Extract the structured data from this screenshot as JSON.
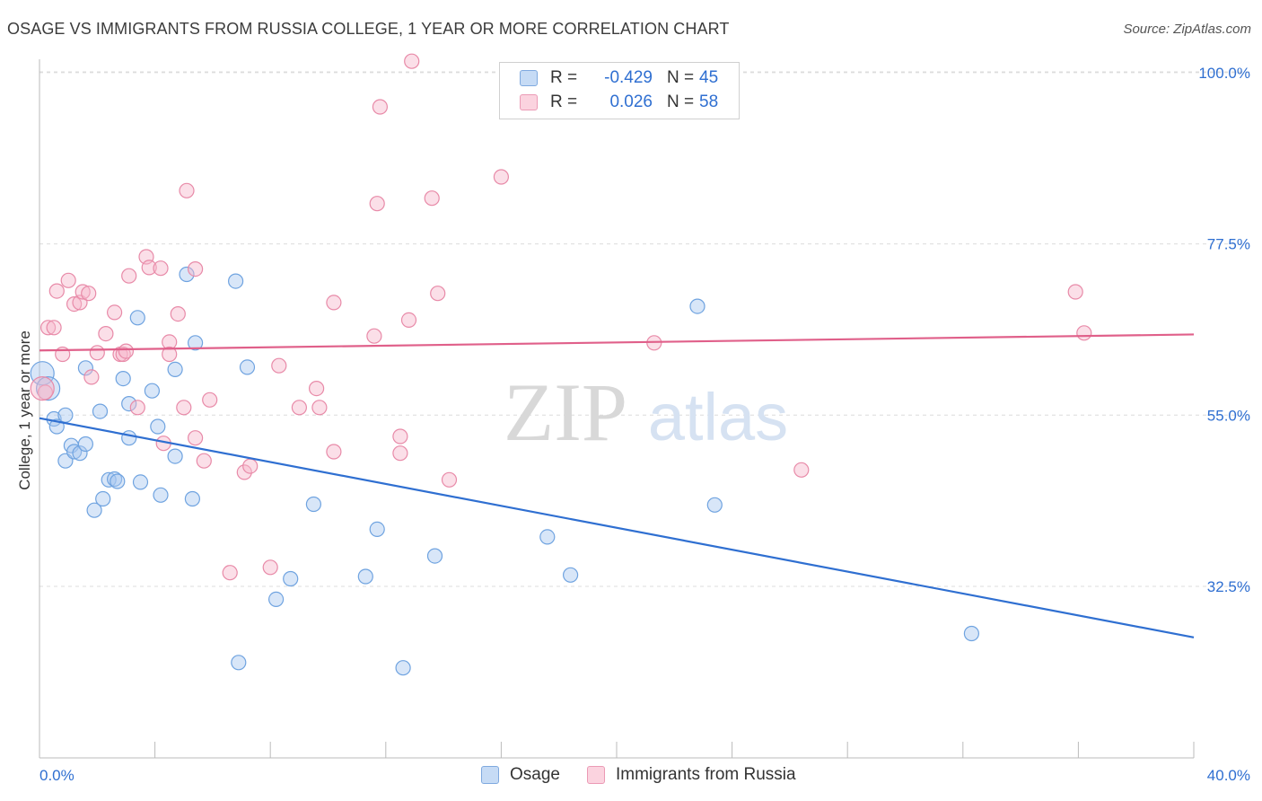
{
  "title": "OSAGE VS IMMIGRANTS FROM RUSSIA COLLEGE, 1 YEAR OR MORE CORRELATION CHART",
  "source": "Source: ZipAtlas.com",
  "watermark": {
    "zip": "ZIP",
    "atlas": "atlas"
  },
  "legend": {
    "rows": [
      {
        "r_label": "R =",
        "r_value": "-0.429",
        "n_label": "N =",
        "n_value": "45",
        "color": "#a8c8f0"
      },
      {
        "r_label": "R =",
        "r_value": "0.026",
        "n_label": "N =",
        "n_value": "58",
        "color": "#f7b8cb"
      }
    ]
  },
  "bottom_legend": [
    {
      "label": "Osage",
      "color": "#a8c8f0"
    },
    {
      "label": "Immigrants from Russia",
      "color": "#f7b8cb"
    }
  ],
  "chart_data": {
    "type": "scatter",
    "title": "OSAGE VS IMMIGRANTS FROM RUSSIA COLLEGE, 1 YEAR OR MORE CORRELATION CHART",
    "xlabel": "",
    "ylabel": "College, 1 year or more",
    "xlim": [
      0,
      40
    ],
    "ylim": [
      13,
      102
    ],
    "x_tick_labels": [
      "0.0%",
      "40.0%"
    ],
    "y_ticks": [
      32.5,
      55.0,
      77.5,
      100.0
    ],
    "y_tick_labels": [
      "32.5%",
      "55.0%",
      "77.5%",
      "100.0%"
    ],
    "grid": true,
    "legend_position": "top-center",
    "series": [
      {
        "name": "Osage",
        "color": "#6fa3e0",
        "fill": "rgba(168,200,240,0.45)",
        "line_color": "#2f6fd1",
        "trend": {
          "x": [
            0,
            40
          ],
          "y": [
            54.6,
            25.8
          ]
        },
        "points": [
          [
            0.1,
            60.5
          ],
          [
            0.3,
            58.5
          ],
          [
            0.5,
            54.5
          ],
          [
            0.6,
            53.5
          ],
          [
            0.9,
            55.0
          ],
          [
            0.9,
            49.0
          ],
          [
            1.1,
            51.0
          ],
          [
            1.2,
            50.2
          ],
          [
            1.4,
            50.0
          ],
          [
            1.6,
            51.2
          ],
          [
            1.6,
            61.2
          ],
          [
            1.9,
            42.5
          ],
          [
            2.1,
            55.5
          ],
          [
            2.2,
            44.0
          ],
          [
            2.4,
            46.5
          ],
          [
            2.6,
            46.6
          ],
          [
            2.7,
            46.3
          ],
          [
            2.9,
            59.8
          ],
          [
            3.1,
            52.0
          ],
          [
            3.1,
            56.5
          ],
          [
            3.4,
            67.8
          ],
          [
            3.5,
            46.2
          ],
          [
            3.9,
            58.2
          ],
          [
            4.1,
            53.5
          ],
          [
            4.2,
            44.5
          ],
          [
            4.7,
            49.6
          ],
          [
            4.7,
            61.0
          ],
          [
            5.1,
            73.5
          ],
          [
            5.3,
            44.0
          ],
          [
            5.4,
            64.5
          ],
          [
            6.8,
            72.6
          ],
          [
            6.9,
            22.5
          ],
          [
            7.2,
            61.3
          ],
          [
            8.2,
            30.8
          ],
          [
            8.7,
            33.5
          ],
          [
            9.5,
            43.3
          ],
          [
            11.3,
            33.8
          ],
          [
            11.7,
            40.0
          ],
          [
            12.6,
            21.8
          ],
          [
            13.7,
            36.5
          ],
          [
            17.6,
            39.0
          ],
          [
            18.4,
            34.0
          ],
          [
            22.8,
            69.3
          ],
          [
            23.4,
            43.2
          ],
          [
            32.3,
            26.3
          ]
        ]
      },
      {
        "name": "Immigrants from Russia",
        "color": "#e88aa8",
        "fill": "rgba(247,184,203,0.45)",
        "line_color": "#e0608a",
        "trend": {
          "x": [
            0,
            40
          ],
          "y": [
            63.5,
            65.6
          ]
        },
        "points": [
          [
            0.2,
            58.0
          ],
          [
            0.3,
            66.5
          ],
          [
            0.5,
            66.5
          ],
          [
            0.6,
            71.3
          ],
          [
            0.8,
            63.0
          ],
          [
            1.0,
            72.7
          ],
          [
            1.2,
            69.6
          ],
          [
            1.4,
            69.8
          ],
          [
            1.5,
            71.2
          ],
          [
            1.7,
            71.0
          ],
          [
            1.8,
            60.0
          ],
          [
            2.0,
            63.2
          ],
          [
            2.3,
            65.7
          ],
          [
            2.6,
            68.5
          ],
          [
            2.8,
            63.0
          ],
          [
            2.9,
            63.0
          ],
          [
            3.0,
            63.4
          ],
          [
            3.1,
            73.3
          ],
          [
            3.4,
            56.0
          ],
          [
            3.7,
            75.8
          ],
          [
            3.8,
            74.4
          ],
          [
            4.2,
            74.3
          ],
          [
            4.5,
            64.6
          ],
          [
            4.3,
            51.3
          ],
          [
            4.5,
            63.0
          ],
          [
            4.8,
            68.3
          ],
          [
            5.0,
            56.0
          ],
          [
            5.1,
            84.5
          ],
          [
            5.4,
            52.0
          ],
          [
            5.4,
            74.2
          ],
          [
            5.7,
            49.0
          ],
          [
            5.9,
            57.0
          ],
          [
            6.6,
            34.3
          ],
          [
            7.1,
            47.5
          ],
          [
            7.3,
            48.3
          ],
          [
            8.0,
            35.0
          ],
          [
            8.3,
            61.5
          ],
          [
            9.0,
            56.0
          ],
          [
            9.6,
            58.5
          ],
          [
            9.7,
            56.0
          ],
          [
            10.2,
            50.2
          ],
          [
            10.2,
            69.8
          ],
          [
            11.6,
            65.4
          ],
          [
            11.7,
            82.8
          ],
          [
            11.8,
            95.5
          ],
          [
            12.5,
            52.2
          ],
          [
            12.5,
            50.0
          ],
          [
            12.8,
            67.5
          ],
          [
            12.9,
            101.5
          ],
          [
            13.6,
            83.5
          ],
          [
            13.8,
            71.0
          ],
          [
            14.2,
            46.5
          ],
          [
            16.0,
            86.3
          ],
          [
            21.3,
            64.5
          ],
          [
            26.4,
            47.8
          ],
          [
            35.9,
            71.2
          ],
          [
            36.2,
            65.8
          ],
          [
            0.1,
            58.5
          ]
        ]
      }
    ]
  }
}
